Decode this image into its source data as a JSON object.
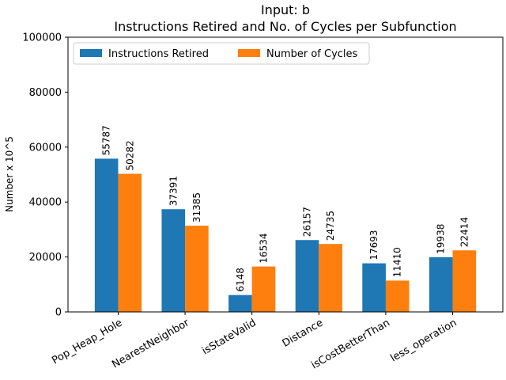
{
  "chart_data": {
    "type": "bar",
    "title": "Input: b",
    "subtitle": "Instructions Retired and No. of Cycles per Subfunction",
    "xlabel": "",
    "ylabel": "Number x 10^5",
    "ylim": [
      0,
      100000
    ],
    "yticks": [
      "0",
      "20000",
      "40000",
      "60000",
      "80000",
      "100000"
    ],
    "categories": [
      "Pop_Heap_Hole",
      "NearestNeighbor",
      "isStateValid",
      "Distance",
      "isCostBetterThan",
      "less_operation"
    ],
    "series": [
      {
        "name": "Instructions Retired",
        "color": "#1f77b4",
        "values": [
          55787,
          37391,
          6148,
          26157,
          17693,
          19938
        ]
      },
      {
        "name": "Number of Cycles",
        "color": "#ff7f0e",
        "values": [
          50282,
          31385,
          16534,
          24735,
          11410,
          22414
        ]
      }
    ],
    "legend_position": "top-left",
    "grid": false
  }
}
